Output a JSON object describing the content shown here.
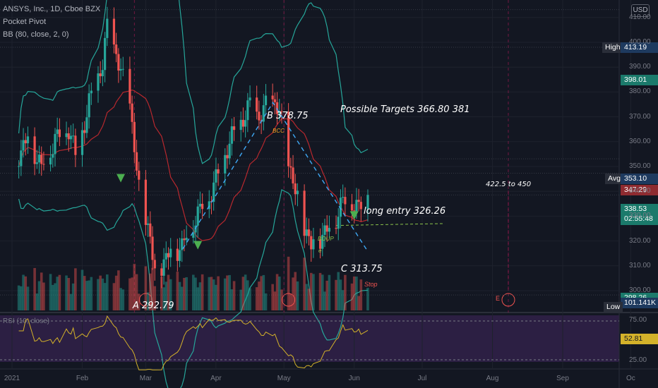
{
  "header": {
    "symbol_line": "ANSYS, Inc., 1D, Cboe BZX",
    "indicator_1": "Pocket Pivot",
    "indicator_2": "BB (80, close, 2, 0)",
    "currency": "USD"
  },
  "annotations": {
    "point_a": "A 292.79",
    "point_b": "B 378.75",
    "point_c": "C 313.75",
    "targets": "Possible Targets 366.80  381",
    "long_entry": "long entry 326.26",
    "range_note": "422.5 to 450",
    "stop": "Stop",
    "bccc": "BCC",
    "boup": "BOUP",
    "e_mark": "E",
    "e_small": "e"
  },
  "price_labels": {
    "high": {
      "tag": "High",
      "value": "413.19"
    },
    "bb_upper": {
      "value": "398.01"
    },
    "avg": {
      "tag": "Avg",
      "value": "353.10"
    },
    "bb_mid": {
      "value": "347.29"
    },
    "last": {
      "value": "338.53",
      "countdown": "02:55:48"
    },
    "volume": {
      "value": "101.141K"
    },
    "low": {
      "tag": "Low",
      "value": "298.26"
    },
    "rsi": {
      "value": "52.81"
    }
  },
  "rsi_panel": {
    "label": "RSI (10, close)",
    "upper_level": "75.00",
    "lower_level": "25.00"
  },
  "colors": {
    "background": "#131722",
    "up": "#26a69a",
    "down": "#ef5350",
    "bb": "#26a69a",
    "bb_mid": "#b7282e",
    "rsi_line": "#d4b22a",
    "rsi_bg": "#2c1f43",
    "pattern": "#3fa9f5",
    "marker": "#4caf50"
  },
  "chart_data": {
    "type": "candlestick",
    "title": "ANSYS, Inc., 1D, Cboe BZX",
    "y_axis": {
      "range": [
        295,
        433
      ],
      "ticks": [
        300,
        310,
        320,
        330,
        340,
        350,
        360,
        370,
        380,
        390,
        400,
        410,
        420,
        430
      ]
    },
    "x_axis": {
      "ticks": [
        "2021",
        "Feb",
        "Mar",
        "Apr",
        "May",
        "Jun",
        "Jul",
        "Aug",
        "Sep",
        "Oc"
      ]
    },
    "close_anchors": [
      {
        "date": "2021-01-04",
        "close": 355
      },
      {
        "date": "2021-01-08",
        "close": 362
      },
      {
        "date": "2021-01-14",
        "close": 350
      },
      {
        "date": "2021-01-20",
        "close": 361
      },
      {
        "date": "2021-01-26",
        "close": 366
      },
      {
        "date": "2021-01-29",
        "close": 354
      },
      {
        "date": "2021-02-04",
        "close": 375
      },
      {
        "date": "2021-02-10",
        "close": 392
      },
      {
        "date": "2021-02-12",
        "close": 405
      },
      {
        "date": "2021-02-16",
        "close": 396
      },
      {
        "date": "2021-02-19",
        "close": 384
      },
      {
        "date": "2021-02-22",
        "close": 376
      },
      {
        "date": "2021-02-24",
        "close": 358
      },
      {
        "date": "2021-02-26",
        "close": 340
      },
      {
        "date": "2021-03-03",
        "close": 322
      },
      {
        "date": "2021-03-05",
        "close": 306
      },
      {
        "date": "2021-03-09",
        "close": 312
      },
      {
        "date": "2021-03-12",
        "close": 316
      },
      {
        "date": "2021-03-17",
        "close": 318
      },
      {
        "date": "2021-03-22",
        "close": 328
      },
      {
        "date": "2021-03-26",
        "close": 334
      },
      {
        "date": "2021-03-31",
        "close": 342
      },
      {
        "date": "2021-04-06",
        "close": 358
      },
      {
        "date": "2021-04-12",
        "close": 368
      },
      {
        "date": "2021-04-16",
        "close": 374
      },
      {
        "date": "2021-04-20",
        "close": 370
      },
      {
        "date": "2021-04-26",
        "close": 377
      },
      {
        "date": "2021-04-29",
        "close": 372
      },
      {
        "date": "2021-05-03",
        "close": 352
      },
      {
        "date": "2021-05-06",
        "close": 340
      },
      {
        "date": "2021-05-10",
        "close": 326
      },
      {
        "date": "2021-05-13",
        "close": 318
      },
      {
        "date": "2021-05-17",
        "close": 322
      },
      {
        "date": "2021-05-20",
        "close": 324
      },
      {
        "date": "2021-05-24",
        "close": 330
      },
      {
        "date": "2021-05-27",
        "close": 336
      },
      {
        "date": "2021-06-01",
        "close": 336
      },
      {
        "date": "2021-06-03",
        "close": 332
      },
      {
        "date": "2021-06-07",
        "close": 338.53
      }
    ],
    "pattern_points": [
      {
        "label": "A",
        "date": "2021-03-08",
        "price": 292.79
      },
      {
        "label": "B",
        "date": "2021-04-28",
        "price": 378.75
      },
      {
        "label": "C",
        "date": "2021-06-07",
        "price": 313.75
      }
    ],
    "levels": [
      {
        "name": "High",
        "price": 413.19
      },
      {
        "name": "Upper band",
        "price": 398.01
      },
      {
        "name": "Avg",
        "price": 353.1
      },
      {
        "name": "Middle band",
        "price": 347.29
      },
      {
        "name": "Last",
        "price": 338.53
      },
      {
        "name": "long entry",
        "price": 326.26
      },
      {
        "name": "Low",
        "price": 298.26
      }
    ],
    "volume_last": "101.141K",
    "rsi": {
      "period": 10,
      "last": 52.81,
      "upper": 75,
      "lower": 25
    }
  }
}
